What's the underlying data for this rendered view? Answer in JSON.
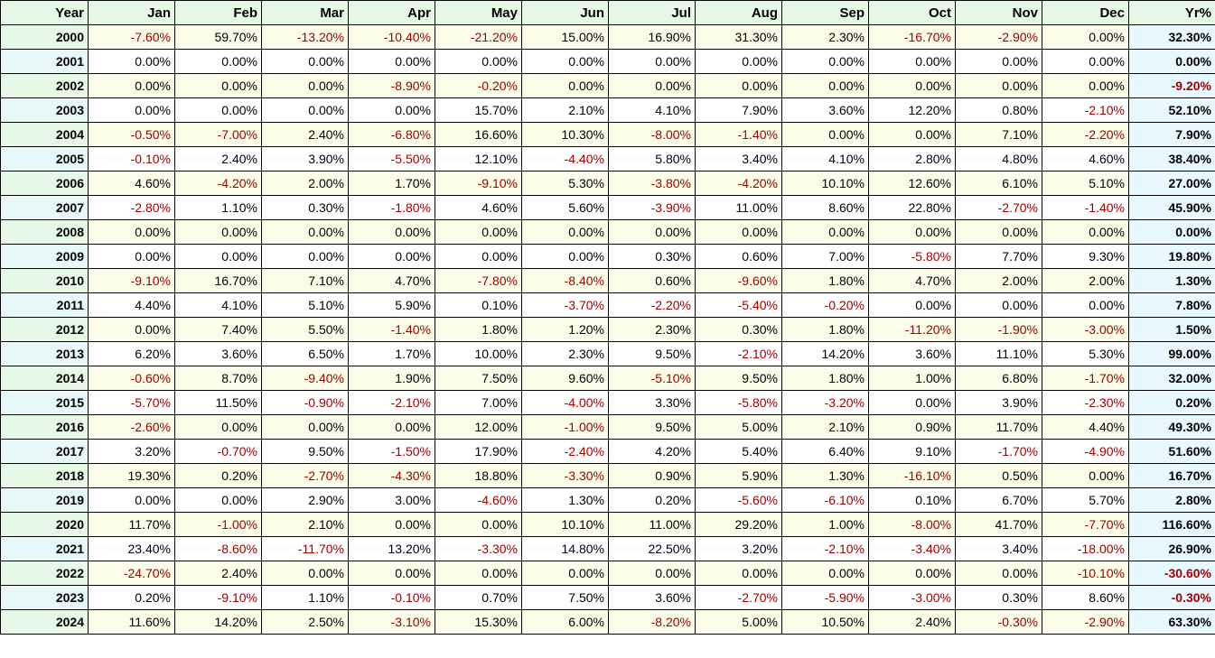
{
  "table": {
    "headers": [
      "Year",
      "Jan",
      "Feb",
      "Mar",
      "Apr",
      "May",
      "Jun",
      "Jul",
      "Aug",
      "Sep",
      "Oct",
      "Nov",
      "Dec",
      "Yr%"
    ],
    "rows": [
      [
        "2000",
        "-7.60%",
        "59.70%",
        "-13.20%",
        "-10.40%",
        "-21.20%",
        "15.00%",
        "16.90%",
        "31.30%",
        "2.30%",
        "-16.70%",
        "-2.90%",
        "0.00%",
        "32.30%"
      ],
      [
        "2001",
        "0.00%",
        "0.00%",
        "0.00%",
        "0.00%",
        "0.00%",
        "0.00%",
        "0.00%",
        "0.00%",
        "0.00%",
        "0.00%",
        "0.00%",
        "0.00%",
        "0.00%"
      ],
      [
        "2002",
        "0.00%",
        "0.00%",
        "0.00%",
        "-8.90%",
        "-0.20%",
        "0.00%",
        "0.00%",
        "0.00%",
        "0.00%",
        "0.00%",
        "0.00%",
        "0.00%",
        "-9.20%"
      ],
      [
        "2003",
        "0.00%",
        "0.00%",
        "0.00%",
        "0.00%",
        "15.70%",
        "2.10%",
        "4.10%",
        "7.90%",
        "3.60%",
        "12.20%",
        "0.80%",
        "-2.10%",
        "52.10%"
      ],
      [
        "2004",
        "-0.50%",
        "-7.00%",
        "2.40%",
        "-6.80%",
        "16.60%",
        "10.30%",
        "-8.00%",
        "-1.40%",
        "0.00%",
        "0.00%",
        "7.10%",
        "-2.20%",
        "7.90%"
      ],
      [
        "2005",
        "-0.10%",
        "2.40%",
        "3.90%",
        "-5.50%",
        "12.10%",
        "-4.40%",
        "5.80%",
        "3.40%",
        "4.10%",
        "2.80%",
        "4.80%",
        "4.60%",
        "38.40%"
      ],
      [
        "2006",
        "4.60%",
        "-4.20%",
        "2.00%",
        "1.70%",
        "-9.10%",
        "5.30%",
        "-3.80%",
        "-4.20%",
        "10.10%",
        "12.60%",
        "6.10%",
        "5.10%",
        "27.00%"
      ],
      [
        "2007",
        "-2.80%",
        "1.10%",
        "0.30%",
        "-1.80%",
        "4.60%",
        "5.60%",
        "-3.90%",
        "11.00%",
        "8.60%",
        "22.80%",
        "-2.70%",
        "-1.40%",
        "45.90%"
      ],
      [
        "2008",
        "0.00%",
        "0.00%",
        "0.00%",
        "0.00%",
        "0.00%",
        "0.00%",
        "0.00%",
        "0.00%",
        "0.00%",
        "0.00%",
        "0.00%",
        "0.00%",
        "0.00%"
      ],
      [
        "2009",
        "0.00%",
        "0.00%",
        "0.00%",
        "0.00%",
        "0.00%",
        "0.00%",
        "0.30%",
        "0.60%",
        "7.00%",
        "-5.80%",
        "7.70%",
        "9.30%",
        "19.80%"
      ],
      [
        "2010",
        "-9.10%",
        "16.70%",
        "7.10%",
        "4.70%",
        "-7.80%",
        "-8.40%",
        "0.60%",
        "-9.60%",
        "1.80%",
        "4.70%",
        "2.00%",
        "2.00%",
        "1.30%"
      ],
      [
        "2011",
        "4.40%",
        "4.10%",
        "5.10%",
        "5.90%",
        "0.10%",
        "-3.70%",
        "-2.20%",
        "-5.40%",
        "-0.20%",
        "0.00%",
        "0.00%",
        "0.00%",
        "7.80%"
      ],
      [
        "2012",
        "0.00%",
        "7.40%",
        "5.50%",
        "-1.40%",
        "1.80%",
        "1.20%",
        "2.30%",
        "0.30%",
        "1.80%",
        "-11.20%",
        "-1.90%",
        "-3.00%",
        "1.50%"
      ],
      [
        "2013",
        "6.20%",
        "3.60%",
        "6.50%",
        "1.70%",
        "10.00%",
        "2.30%",
        "9.50%",
        "-2.10%",
        "14.20%",
        "3.60%",
        "11.10%",
        "5.30%",
        "99.00%"
      ],
      [
        "2014",
        "-0.60%",
        "8.70%",
        "-9.40%",
        "1.90%",
        "7.50%",
        "9.60%",
        "-5.10%",
        "9.50%",
        "1.80%",
        "1.00%",
        "6.80%",
        "-1.70%",
        "32.00%"
      ],
      [
        "2015",
        "-5.70%",
        "11.50%",
        "-0.90%",
        "-2.10%",
        "7.00%",
        "-4.00%",
        "3.30%",
        "-5.80%",
        "-3.20%",
        "0.00%",
        "3.90%",
        "-2.30%",
        "0.20%"
      ],
      [
        "2016",
        "-2.60%",
        "0.00%",
        "0.00%",
        "0.00%",
        "12.00%",
        "-1.00%",
        "9.50%",
        "5.00%",
        "2.10%",
        "0.90%",
        "11.70%",
        "4.40%",
        "49.30%"
      ],
      [
        "2017",
        "3.20%",
        "-0.70%",
        "9.50%",
        "-1.50%",
        "17.90%",
        "-2.40%",
        "4.20%",
        "5.40%",
        "6.40%",
        "9.10%",
        "-1.70%",
        "-4.90%",
        "51.60%"
      ],
      [
        "2018",
        "19.30%",
        "0.20%",
        "-2.70%",
        "-4.30%",
        "18.80%",
        "-3.30%",
        "0.90%",
        "5.90%",
        "1.30%",
        "-16.10%",
        "0.50%",
        "0.00%",
        "16.70%"
      ],
      [
        "2019",
        "0.00%",
        "0.00%",
        "2.90%",
        "3.00%",
        "-4.60%",
        "1.30%",
        "0.20%",
        "-5.60%",
        "-6.10%",
        "0.10%",
        "6.70%",
        "5.70%",
        "2.80%"
      ],
      [
        "2020",
        "11.70%",
        "-1.00%",
        "2.10%",
        "0.00%",
        "0.00%",
        "10.10%",
        "11.00%",
        "29.20%",
        "1.00%",
        "-8.00%",
        "41.70%",
        "-7.70%",
        "116.60%"
      ],
      [
        "2021",
        "23.40%",
        "-8.60%",
        "-11.70%",
        "13.20%",
        "-3.30%",
        "14.80%",
        "22.50%",
        "3.20%",
        "-2.10%",
        "-3.40%",
        "3.40%",
        "-18.00%",
        "26.90%"
      ],
      [
        "2022",
        "-24.70%",
        "2.40%",
        "0.00%",
        "0.00%",
        "0.00%",
        "0.00%",
        "0.00%",
        "0.00%",
        "0.00%",
        "0.00%",
        "0.00%",
        "-10.10%",
        "-30.60%"
      ],
      [
        "2023",
        "0.20%",
        "-9.10%",
        "1.10%",
        "-0.10%",
        "0.70%",
        "7.50%",
        "3.60%",
        "-2.70%",
        "-5.90%",
        "-3.00%",
        "0.30%",
        "8.60%",
        "-0.30%"
      ],
      [
        "2024",
        "11.60%",
        "14.20%",
        "2.50%",
        "-3.10%",
        "15.30%",
        "6.00%",
        "-8.20%",
        "5.00%",
        "10.50%",
        "2.40%",
        "-0.30%",
        "-2.90%",
        "63.30%"
      ]
    ]
  },
  "colors": {
    "negative": "#a00000",
    "header_bg": "#e4f8e4",
    "odd_row_bg": "#fbfde8",
    "even_row_bg": "#ffffff",
    "total_col_bg": "#e8f8ff"
  }
}
